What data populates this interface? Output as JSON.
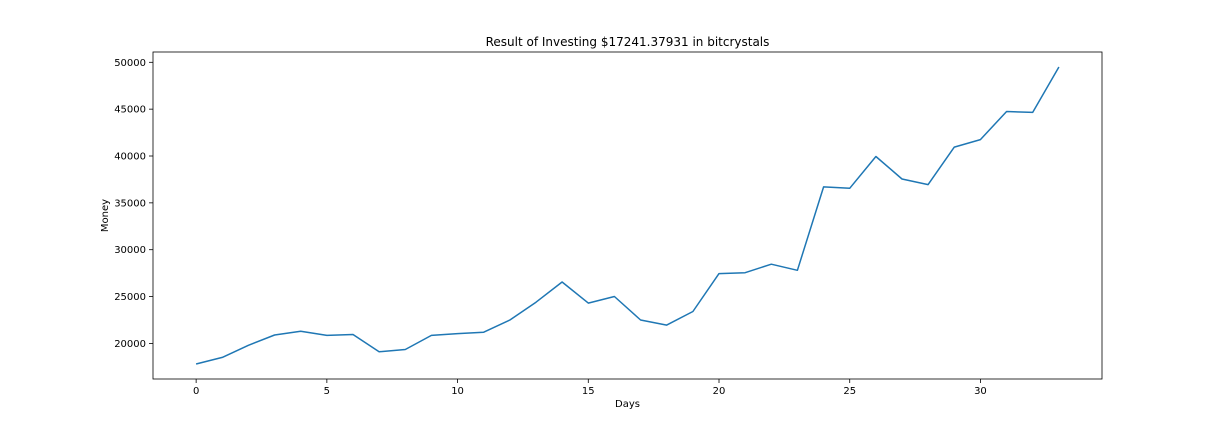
{
  "chart_data": {
    "type": "line",
    "title": "Result of Investing $17241.37931 in bitcrystals",
    "xlabel": "Days",
    "ylabel": "Money",
    "xlim": [
      -1.65,
      34.65
    ],
    "ylim": [
      16200,
      51100
    ],
    "x_ticks": [
      0,
      5,
      10,
      15,
      20,
      25,
      30
    ],
    "y_ticks": [
      20000,
      25000,
      30000,
      35000,
      40000,
      45000,
      50000
    ],
    "grid": false,
    "series": [
      {
        "color": "#1f77b4",
        "x": [
          0,
          1,
          2,
          3,
          4,
          5,
          6,
          7,
          8,
          9,
          10,
          11,
          12,
          13,
          14,
          15,
          16,
          17,
          18,
          19,
          20,
          21,
          22,
          23,
          24,
          25,
          26,
          27,
          28,
          29,
          30,
          31,
          32,
          33
        ],
        "values": [
          17800,
          18500,
          19800,
          20900,
          21300,
          20850,
          20950,
          19100,
          19350,
          20850,
          21050,
          21200,
          22500,
          24400,
          26550,
          24300,
          25000,
          22500,
          21950,
          23400,
          27450,
          27550,
          28450,
          27800,
          36700,
          36550,
          39950,
          37550,
          36950,
          40950,
          41750,
          44750,
          44650,
          49500
        ]
      }
    ]
  }
}
